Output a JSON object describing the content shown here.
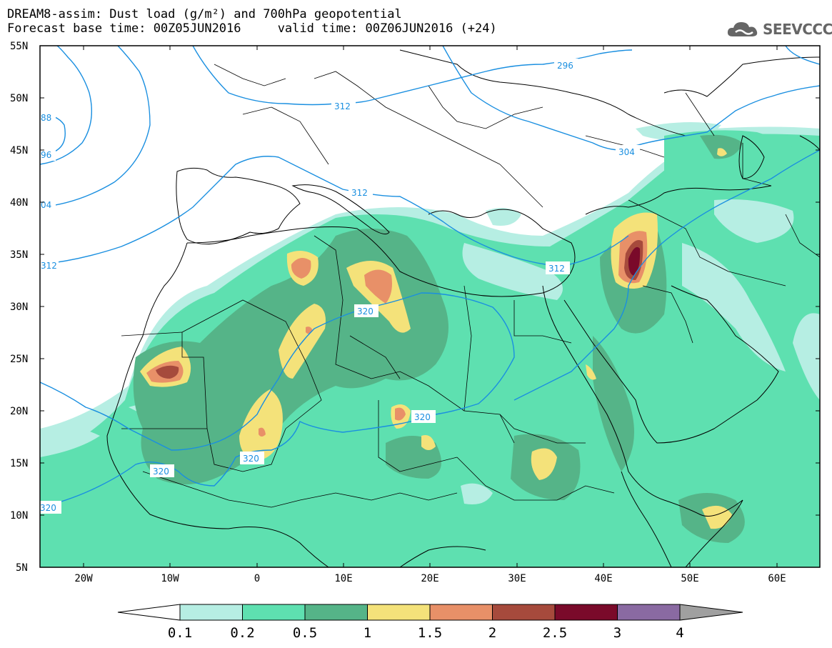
{
  "header": {
    "title_line1": "DREAM8-assim: Dust load (g/m²) and 700hPa geopotential",
    "title_line2": "Forecast base time: 00Z05JUN2016     valid time: 00Z06JUN2016 (+24)"
  },
  "logo": {
    "text": "SEEVCCC",
    "icon": "cloud-icon"
  },
  "map": {
    "lat_labels": [
      "55N",
      "50N",
      "45N",
      "40N",
      "35N",
      "30N",
      "25N",
      "20N",
      "15N",
      "10N",
      "5N"
    ],
    "lon_labels": [
      "20W",
      "10W",
      "0",
      "10E",
      "20E",
      "30E",
      "40E",
      "50E",
      "60E"
    ],
    "contour_labels": [
      "296",
      "312",
      "304",
      "312",
      "312",
      "320",
      "320",
      "320",
      "320",
      "320",
      "88",
      "96",
      "04",
      "312"
    ],
    "colors": {
      "land_lines": "#000000",
      "contour": "#1a8fe0"
    }
  },
  "colorbar": {
    "labels": [
      "0.1",
      "0.2",
      "0.5",
      "1",
      "1.5",
      "2",
      "2.5",
      "3",
      "4"
    ],
    "colors": [
      "#b6eee3",
      "#5ee0b0",
      "#55b488",
      "#f4e27a",
      "#e89068",
      "#a64a3c",
      "#7a0a2a",
      "#8a6aa2"
    ],
    "low_color": "#ffffff",
    "high_color": "#a0a0a0"
  }
}
